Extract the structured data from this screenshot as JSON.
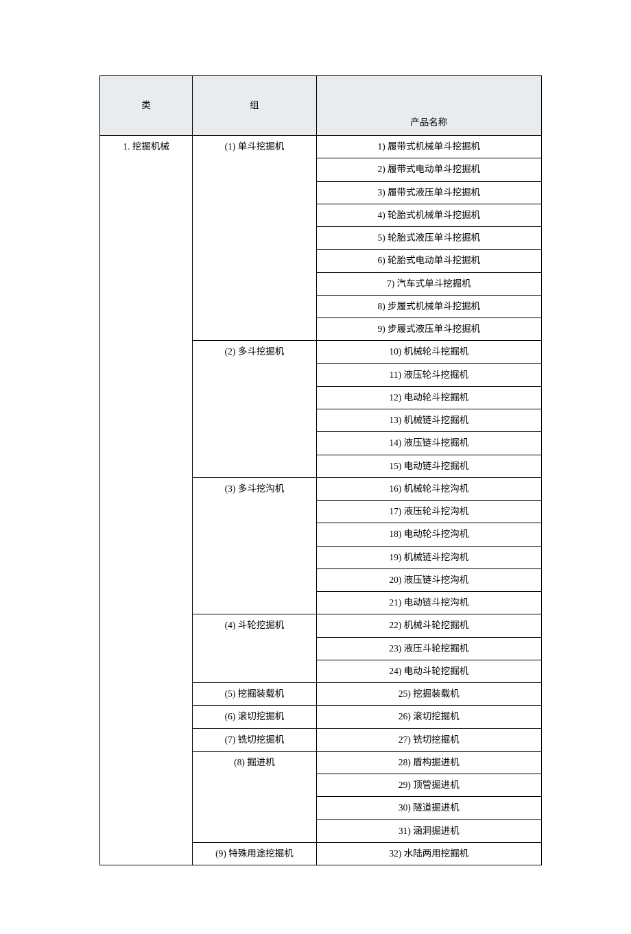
{
  "headers": {
    "category": "类",
    "group": "组",
    "product": "产品名称"
  },
  "category": "1. 挖掘机械",
  "groups": [
    {
      "label": "(1) 单斗挖掘机",
      "products": [
        "1) 履带式机械单斗挖掘机",
        "2) 履带式电动单斗挖掘机",
        "3) 履带式液压单斗挖掘机",
        "4) 轮胎式机械单斗挖掘机",
        "5) 轮胎式液压单斗挖掘机",
        "6) 轮胎式电动单斗挖掘机",
        "7) 汽车式单斗挖掘机",
        "8) 步履式机械单斗挖掘机",
        "9) 步履式液压单斗挖掘机"
      ]
    },
    {
      "label": "(2) 多斗挖掘机",
      "products": [
        "10) 机械轮斗挖掘机",
        "11) 液压轮斗挖掘机",
        "12) 电动轮斗挖掘机",
        "13) 机械链斗挖掘机",
        "14) 液压链斗挖掘机",
        "15) 电动链斗挖掘机"
      ]
    },
    {
      "label": "(3) 多斗挖沟机",
      "products": [
        "16) 机械轮斗挖沟机",
        "17) 液压轮斗挖沟机",
        "18) 电动轮斗挖沟机",
        "19) 机械链斗挖沟机",
        "20) 液压链斗挖沟机",
        "21) 电动链斗挖沟机"
      ]
    },
    {
      "label": "(4) 斗轮挖掘机",
      "products": [
        "22) 机械斗轮挖掘机",
        "23) 液压斗轮挖掘机",
        "24) 电动斗轮挖掘机"
      ]
    },
    {
      "label": "(5) 挖掘装载机",
      "products": [
        "25) 挖掘装载机"
      ]
    },
    {
      "label": "(6) 滚切挖掘机",
      "products": [
        "26) 滚切挖掘机"
      ]
    },
    {
      "label": "(7) 铣切挖掘机",
      "products": [
        "27) 铣切挖掘机"
      ]
    },
    {
      "label": "(8) 掘进机",
      "products": [
        "28) 盾构掘进机",
        "29) 顶管掘进机",
        "30) 隧道掘进机",
        "31) 涵洞掘进机"
      ]
    },
    {
      "label": "(9) 特殊用途挖掘机",
      "products": [
        "32) 水陆两用挖掘机"
      ]
    }
  ],
  "style": {
    "background_color": "#ffffff",
    "header_bg": "#e8ecef",
    "border_color": "#000000",
    "font_family": "SimSun",
    "font_size_pt": 10.5,
    "text_color": "#000000",
    "col_widths_pct": [
      21,
      28,
      51
    ]
  }
}
